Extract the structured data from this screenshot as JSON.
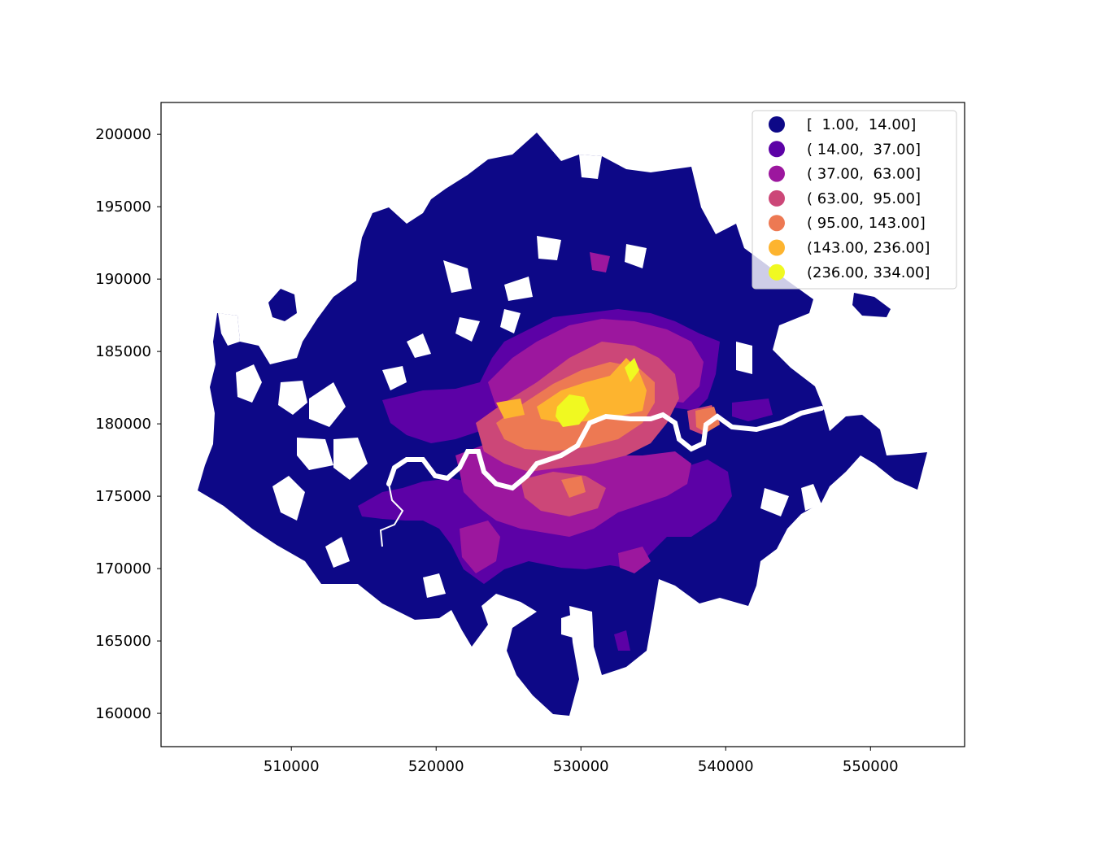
{
  "map": {
    "type": "choropleth",
    "colormap": "plasma",
    "x_axis": {
      "range": [
        501000,
        556500
      ],
      "ticks": [
        510000,
        520000,
        530000,
        540000,
        550000
      ],
      "tick_labels": [
        "510000",
        "520000",
        "530000",
        "540000",
        "550000"
      ]
    },
    "y_axis": {
      "range": [
        157700,
        202200
      ],
      "ticks": [
        160000,
        165000,
        170000,
        175000,
        180000,
        185000,
        190000,
        195000,
        200000
      ],
      "tick_labels": [
        "160000",
        "165000",
        "170000",
        "175000",
        "180000",
        "185000",
        "190000",
        "195000",
        "200000"
      ]
    },
    "legend": {
      "position": "upper right",
      "entries": [
        {
          "label": "[  1.00,  14.00]",
          "color": "#0d0887"
        },
        {
          "label": "( 14.00,  37.00]",
          "color": "#5c01a6"
        },
        {
          "label": "( 37.00,  63.00]",
          "color": "#9c179e"
        },
        {
          "label": "( 63.00,  95.00]",
          "color": "#cc4778"
        },
        {
          "label": "( 95.00, 143.00]",
          "color": "#ed7953"
        },
        {
          "label": "(143.00, 236.00]",
          "color": "#fdb42f"
        },
        {
          "label": "(236.00, 334.00]",
          "color": "#f0f921"
        }
      ]
    }
  }
}
